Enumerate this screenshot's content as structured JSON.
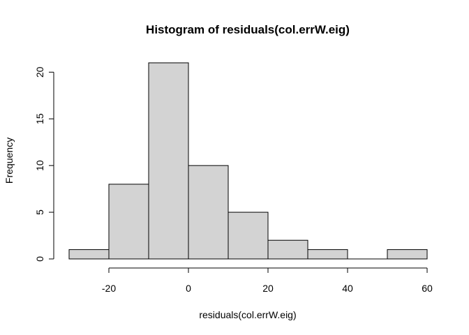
{
  "chart_data": {
    "type": "bar",
    "title": "Histogram of residuals(col.errW.eig)",
    "xlabel": "residuals(col.errW.eig)",
    "ylabel": "Frequency",
    "bins": [
      {
        "from": -30,
        "to": -20,
        "count": 1
      },
      {
        "from": -20,
        "to": -10,
        "count": 8
      },
      {
        "from": -10,
        "to": 0,
        "count": 21
      },
      {
        "from": 0,
        "to": 10,
        "count": 10
      },
      {
        "from": 10,
        "to": 20,
        "count": 5
      },
      {
        "from": 20,
        "to": 30,
        "count": 2
      },
      {
        "from": 30,
        "to": 40,
        "count": 1
      },
      {
        "from": 40,
        "to": 50,
        "count": 0
      },
      {
        "from": 50,
        "to": 60,
        "count": 1
      }
    ],
    "xlim": [
      -30,
      60
    ],
    "ylim": [
      0,
      21
    ],
    "x_ticks": [
      -20,
      0,
      20,
      40,
      60
    ],
    "y_ticks": [
      0,
      5,
      10,
      15,
      20
    ],
    "bar_fill": "#d3d3d3",
    "grid": false,
    "legend": "none"
  }
}
